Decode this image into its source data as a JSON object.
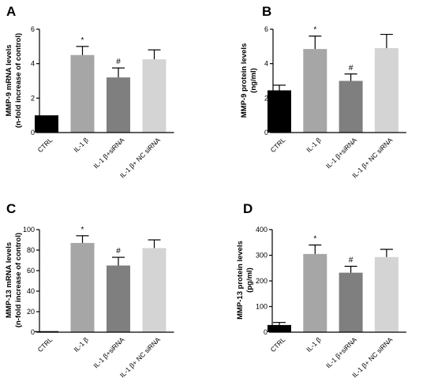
{
  "chart_data": [
    {
      "panel": "A",
      "type": "bar",
      "ylabel": "MMP-9 mRNA levels",
      "ylabel2": "(n-fold  increase of control)",
      "categories": [
        "CTRL",
        "IL-1 β",
        "IL-1 β+siRNA",
        "IL-1 β+ NC siRNA"
      ],
      "values": [
        1.0,
        4.5,
        3.2,
        4.25
      ],
      "errors": [
        0,
        0.5,
        0.55,
        0.55
      ],
      "annotations": [
        "",
        "*",
        "#",
        ""
      ],
      "colors": [
        "#000000",
        "#a6a6a6",
        "#7f7f7f",
        "#d4d4d4"
      ],
      "ylim": [
        0,
        6
      ],
      "yticks": [
        0,
        2,
        4,
        6
      ]
    },
    {
      "panel": "B",
      "type": "bar",
      "ylabel": "MMP-9 protein levels",
      "ylabel2": "(ng/ml)",
      "categories": [
        "CTRL",
        "IL-1 β",
        "IL-1 β+siRNA",
        "IL-1 β+ NC siRNA"
      ],
      "values": [
        2.45,
        4.85,
        3.0,
        4.9
      ],
      "errors": [
        0.3,
        0.75,
        0.4,
        0.8
      ],
      "annotations": [
        "",
        "*",
        "#",
        ""
      ],
      "colors": [
        "#000000",
        "#a6a6a6",
        "#7f7f7f",
        "#d4d4d4"
      ],
      "ylim": [
        0,
        6
      ],
      "yticks": [
        0,
        2,
        4,
        6
      ]
    },
    {
      "panel": "C",
      "type": "bar",
      "ylabel": "MMP-13 mRNA levels",
      "ylabel2": "(n-fold  increase of control)",
      "categories": [
        "CTRL",
        "IL-1 β",
        "IL-1 β+siRNA",
        "IL-1 β+ NC siRNA"
      ],
      "values": [
        1.0,
        87,
        65,
        82
      ],
      "errors": [
        0,
        7,
        8,
        8
      ],
      "annotations": [
        "",
        "*",
        "#",
        ""
      ],
      "colors": [
        "#000000",
        "#a6a6a6",
        "#7f7f7f",
        "#d4d4d4"
      ],
      "ylim": [
        0,
        100
      ],
      "yticks": [
        0,
        20,
        40,
        60,
        80,
        100
      ]
    },
    {
      "panel": "D",
      "type": "bar",
      "ylabel": "MMP-13 protein levels",
      "ylabel2": "(pg/ml)",
      "categories": [
        "CTRL",
        "IL-1 β",
        "IL-1 β+siRNA",
        "IL-1 β+ NC siRNA"
      ],
      "values": [
        28,
        305,
        232,
        293
      ],
      "errors": [
        10,
        35,
        25,
        30
      ],
      "annotations": [
        "",
        "*",
        "#",
        ""
      ],
      "colors": [
        "#000000",
        "#a6a6a6",
        "#7f7f7f",
        "#d4d4d4"
      ],
      "ylim": [
        0,
        400
      ],
      "yticks": [
        0,
        100,
        200,
        300,
        400
      ]
    }
  ]
}
